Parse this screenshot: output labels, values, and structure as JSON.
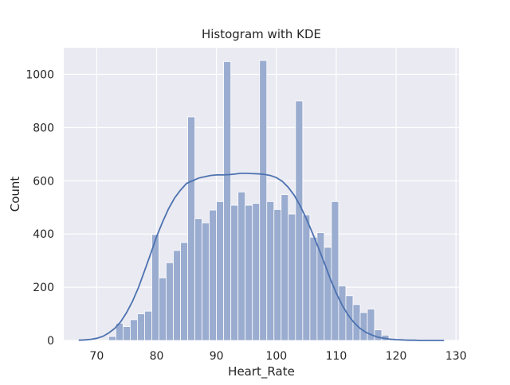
{
  "chart_data": {
    "type": "bar",
    "title": "Histogram with KDE",
    "xlabel": "Heart_Rate",
    "ylabel": "Count",
    "xlim": [
      64.5,
      130.5
    ],
    "ylim": [
      0,
      1100
    ],
    "xticks": [
      70,
      80,
      90,
      100,
      110,
      120,
      130
    ],
    "yticks": [
      0,
      200,
      400,
      600,
      800,
      1000
    ],
    "grid": true,
    "colors": {
      "bar_fill": "#9aaccf",
      "bar_edge": "#ffffff",
      "kde_line": "#4c72b0",
      "background": "#eaeaf2",
      "grid": "#ffffff"
    },
    "bin_start": 72.0,
    "bin_width": 1.2,
    "counts": [
      15,
      65,
      52,
      78,
      100,
      110,
      398,
      235,
      292,
      338,
      368,
      840,
      458,
      442,
      490,
      522,
      1048,
      508,
      558,
      508,
      515,
      1052,
      522,
      492,
      548,
      475,
      900,
      472,
      388,
      405,
      350,
      522,
      205,
      168,
      135,
      105,
      118,
      40,
      20,
      8
    ],
    "kde": {
      "x": [
        67,
        68,
        69,
        70,
        71,
        72,
        73,
        74,
        75,
        76,
        77,
        78,
        79,
        80,
        81,
        82,
        83,
        84,
        85,
        86,
        87,
        88,
        89,
        90,
        91,
        92,
        93,
        94,
        95,
        96,
        97,
        98,
        99,
        100,
        101,
        102,
        103,
        104,
        105,
        106,
        107,
        108,
        109,
        110,
        111,
        112,
        113,
        114,
        115,
        116,
        117,
        118,
        119,
        120,
        121,
        122,
        123,
        124,
        125,
        126,
        127,
        128
      ],
      "y": [
        1,
        2,
        4,
        8,
        15,
        28,
        45,
        70,
        105,
        148,
        200,
        262,
        325,
        390,
        445,
        495,
        535,
        565,
        590,
        600,
        610,
        615,
        620,
        622,
        622,
        623,
        625,
        628,
        628,
        627,
        626,
        624,
        620,
        612,
        598,
        575,
        545,
        505,
        458,
        405,
        350,
        292,
        232,
        178,
        132,
        95,
        66,
        45,
        30,
        20,
        12,
        8,
        5,
        3,
        2,
        1,
        1,
        0,
        0,
        0,
        0,
        0
      ]
    }
  }
}
